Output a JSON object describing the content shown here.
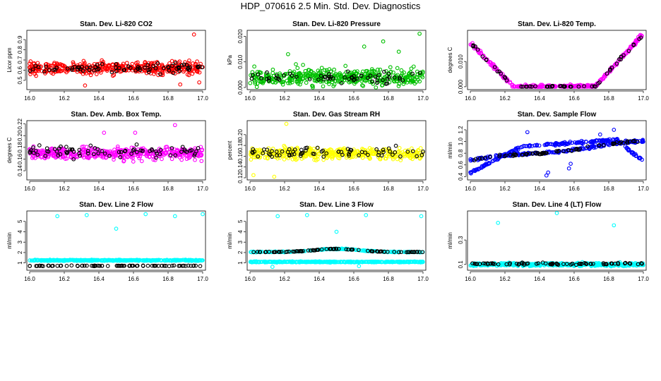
{
  "figure": {
    "title": "HDP_070616  2.5 Min. Std. Dev. Diagnostics",
    "xticks": [
      "16.0",
      "16.2",
      "16.4",
      "16.6",
      "16.8",
      "17.0"
    ]
  },
  "colors": {
    "red": "#ff0000",
    "green": "#00c000",
    "magenta": "#ff00ff",
    "yellow": "#ffff00",
    "blue": "#0000ff",
    "cyan": "#00ffff",
    "black": "#000000"
  },
  "chart_data": [
    {
      "type": "scatter",
      "title": "Stan. Dev. Li-820 CO2",
      "ylabel": "Licor ppm",
      "xlim": [
        16.0,
        17.0
      ],
      "ylim": [
        0.43,
        0.97
      ],
      "yticks": [
        "0.5",
        "0.6",
        "0.7",
        "0.8",
        "0.9"
      ],
      "ytick_values": [
        0.5,
        0.6,
        0.7,
        0.8,
        0.9
      ],
      "series": [
        {
          "name": "primary",
          "color": "red",
          "n": 420,
          "baseline": 0.62,
          "spread": 0.07,
          "jitter": 0.05,
          "outliers": [
            [
              16.32,
              0.45
            ],
            [
              16.95,
              0.95
            ],
            [
              16.98,
              0.48
            ],
            [
              16.87,
              0.46
            ]
          ]
        },
        {
          "name": "comparison",
          "color": "black",
          "n": 75,
          "baseline": 0.62,
          "spread": 0.06,
          "jitter": 0.04
        }
      ]
    },
    {
      "type": "scatter",
      "title": "Stan. Dev. Li-820 Pressure",
      "ylabel": "kPa",
      "xlim": [
        16.0,
        17.0
      ],
      "ylim": [
        0.0,
        0.0215
      ],
      "yticks": [
        "0.000",
        "0.010",
        "0.020"
      ],
      "ytick_values": [
        0.0,
        0.01,
        0.02
      ],
      "series": [
        {
          "name": "primary",
          "color": "green",
          "n": 430,
          "baseline": 0.004,
          "spread": 0.004,
          "jitter": 0.003,
          "floor": 0.0,
          "outliers": [
            [
              16.98,
              0.021
            ],
            [
              16.66,
              0.016
            ],
            [
              16.77,
              0.018
            ],
            [
              16.22,
              0.013
            ],
            [
              16.86,
              0.014
            ]
          ]
        },
        {
          "name": "comparison",
          "color": "black",
          "n": 60,
          "baseline": 0.004,
          "spread": 0.003,
          "jitter": 0.002,
          "floor": 0.0
        }
      ]
    },
    {
      "type": "scatter",
      "title": "Stan. Dev. Li-820 Temp.",
      "ylabel": "degrees C",
      "xlim": [
        16.0,
        17.0
      ],
      "ylim": [
        -0.0003,
        0.0215
      ],
      "yticks": [
        "0.000",
        "0.010"
      ],
      "ytick_values": [
        0.0,
        0.01
      ],
      "series": [
        {
          "name": "primary",
          "color": "magenta",
          "n": 300,
          "curve": "vee",
          "jitter": 0.0012
        },
        {
          "name": "comparison",
          "color": "black",
          "n": 60,
          "curve": "vee",
          "jitter": 0.0009
        }
      ]
    },
    {
      "type": "scatter",
      "title": "Stan. Dev. Amb. Box Temp.",
      "ylabel": "degrees C",
      "xlim": [
        16.0,
        17.0
      ],
      "ylim": [
        0.128,
        0.222
      ],
      "yticks": [
        "0.14",
        "0.16",
        "0.18",
        "0.20",
        "0.22"
      ],
      "ytick_values": [
        0.14,
        0.16,
        0.18,
        0.2,
        0.22
      ],
      "series": [
        {
          "name": "primary",
          "color": "magenta",
          "n": 430,
          "baseline": 0.17,
          "spread": 0.013,
          "jitter": 0.009,
          "outliers": [
            [
              16.84,
              0.218
            ],
            [
              16.43,
              0.205
            ],
            [
              16.61,
              0.205
            ]
          ]
        },
        {
          "name": "comparison",
          "color": "black",
          "n": 75,
          "baseline": 0.172,
          "spread": 0.012,
          "jitter": 0.008
        }
      ]
    },
    {
      "type": "scatter",
      "title": "Stan. Dev. Gas Stream RH",
      "ylabel": "percent",
      "xlim": [
        16.0,
        17.0
      ],
      "ylim": [
        0.12,
        0.222
      ],
      "yticks": [
        "0.12",
        "0.14",
        "0.16",
        "0.18",
        "0.20"
      ],
      "ytick_values": [
        0.12,
        0.14,
        0.16,
        0.18,
        0.2
      ],
      "series": [
        {
          "name": "primary",
          "color": "yellow",
          "n": 430,
          "baseline": 0.165,
          "spread": 0.013,
          "jitter": 0.01,
          "outliers": [
            [
              16.21,
              0.22
            ],
            [
              16.02,
              0.125
            ],
            [
              16.14,
              0.122
            ]
          ]
        },
        {
          "name": "comparison",
          "color": "black",
          "n": 70,
          "baseline": 0.168,
          "spread": 0.012,
          "jitter": 0.008
        }
      ]
    },
    {
      "type": "scatter",
      "title": "Stan. Dev. Sample Flow",
      "ylabel": "ml/min",
      "xlim": [
        16.0,
        17.0
      ],
      "ylim": [
        0.38,
        1.32
      ],
      "yticks": [
        "0.4",
        "0.6",
        "0.8",
        "1.0",
        "1.2"
      ],
      "ytick_values": [
        0.4,
        0.6,
        0.8,
        1.0,
        1.2
      ],
      "series": [
        {
          "name": "primary-upper",
          "color": "blue",
          "n": 200,
          "curve": "flow-upper",
          "jitter": 0.035,
          "outliers": [
            [
              16.33,
              1.16
            ],
            [
              16.45,
              0.47
            ],
            [
              16.44,
              0.42
            ],
            [
              16.58,
              0.62
            ],
            [
              16.75,
              1.12
            ],
            [
              16.83,
              1.2
            ],
            [
              16.57,
              0.54
            ]
          ]
        },
        {
          "name": "primary-lower",
          "color": "blue",
          "n": 200,
          "curve": "flow-lower",
          "jitter": 0.035
        },
        {
          "name": "comparison",
          "color": "black",
          "n": 70,
          "curve": "flow-upper",
          "jitter": 0.03
        }
      ]
    },
    {
      "type": "scatter",
      "title": "Stan. Dev. Line 2 Flow",
      "ylabel": "ml/min",
      "xlim": [
        16.0,
        17.0
      ],
      "ylim": [
        0.5,
        5.8
      ],
      "yticks": [
        "1",
        "2",
        "3",
        "4",
        "5"
      ],
      "ytick_values": [
        1,
        2,
        3,
        4,
        5
      ],
      "series": [
        {
          "name": "primary",
          "color": "cyan",
          "n": 420,
          "baseline": 1.25,
          "spread": 0.06,
          "jitter": 0.05,
          "outliers": [
            [
              16.16,
              5.5
            ],
            [
              16.33,
              5.6
            ],
            [
              16.5,
              4.3
            ],
            [
              16.67,
              5.7
            ],
            [
              16.84,
              5.5
            ],
            [
              17.0,
              5.7
            ]
          ]
        },
        {
          "name": "comparison",
          "color": "black",
          "n": 80,
          "baseline": 0.72,
          "spread": 0.03,
          "jitter": 0.03
        }
      ]
    },
    {
      "type": "scatter",
      "title": "Stan. Dev. Line 3 Flow",
      "ylabel": "ml/min",
      "xlim": [
        16.0,
        17.0
      ],
      "ylim": [
        0.5,
        5.8
      ],
      "yticks": [
        "1",
        "2",
        "3",
        "4",
        "5"
      ],
      "ytick_values": [
        1,
        2,
        3,
        4,
        5
      ],
      "series": [
        {
          "name": "primary-lower",
          "color": "cyan",
          "n": 380,
          "baseline": 1.1,
          "spread": 0.05,
          "jitter": 0.05,
          "outliers": [
            [
              16.16,
              5.5
            ],
            [
              16.33,
              5.6
            ],
            [
              16.5,
              4.0
            ],
            [
              16.67,
              5.6
            ],
            [
              16.99,
              5.5
            ],
            [
              16.13,
              0.62
            ],
            [
              16.63,
              0.7
            ]
          ]
        },
        {
          "name": "primary-upper",
          "color": "cyan",
          "n": 220,
          "curve": "line3-hump",
          "jitter": 0.06
        },
        {
          "name": "comparison",
          "color": "black",
          "n": 85,
          "curve": "line3-hump",
          "jitter": 0.04
        }
      ]
    },
    {
      "type": "scatter",
      "title": "Stan. Dev. Line 4 (LT) Flow",
      "ylabel": "ml/min",
      "xlim": [
        16.0,
        17.0
      ],
      "ylim": [
        0.07,
        0.52
      ],
      "yticks": [
        "0.1",
        "0.3"
      ],
      "ytick_values": [
        0.1,
        0.3
      ],
      "series": [
        {
          "name": "primary",
          "color": "cyan",
          "n": 420,
          "baseline": 0.1,
          "spread": 0.015,
          "jitter": 0.012,
          "outliers": [
            [
              16.16,
              0.44
            ],
            [
              16.5,
              0.52
            ],
            [
              16.83,
              0.42
            ]
          ]
        },
        {
          "name": "comparison",
          "color": "black",
          "n": 75,
          "baseline": 0.105,
          "spread": 0.01,
          "jitter": 0.01
        }
      ]
    }
  ]
}
